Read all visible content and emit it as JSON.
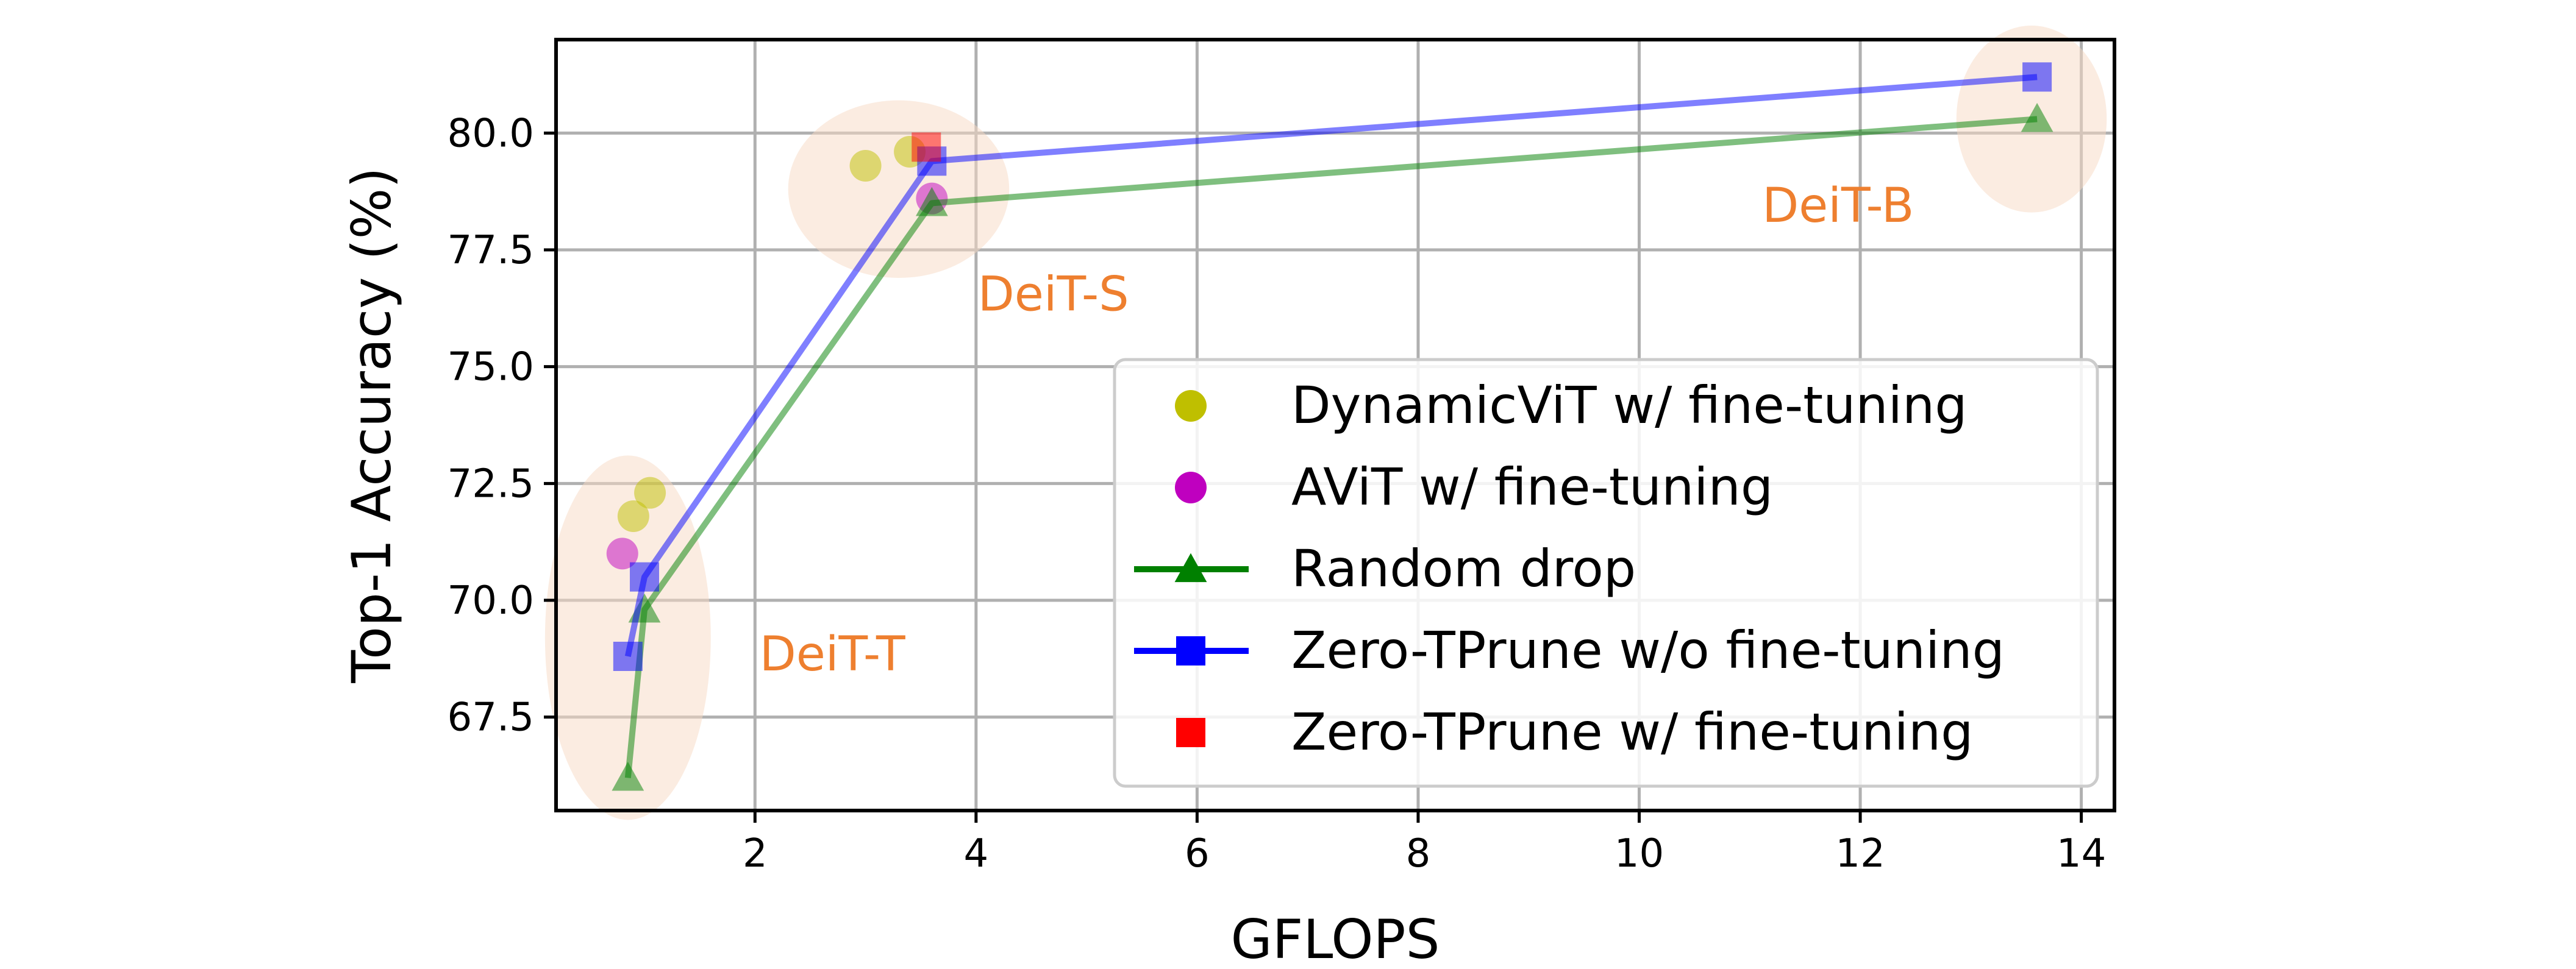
{
  "chart_data": {
    "type": "line",
    "xlabel": "GFLOPS",
    "ylabel": "Top-1 Accuracy (%)",
    "xlim": [
      0.2,
      14.3
    ],
    "ylim": [
      65.5,
      82.0
    ],
    "x_ticks": [
      2,
      4,
      6,
      8,
      10,
      12,
      14
    ],
    "y_ticks": [
      67.5,
      70.0,
      72.5,
      75.0,
      77.5,
      80.0
    ],
    "grid": true,
    "legend_position": "bottom-right",
    "series": [
      {
        "name": "DynamicViT w/ fine-tuning",
        "kind": "scatter",
        "marker": "circle",
        "color": "#bfbf00",
        "points": [
          [
            0.9,
            71.8
          ],
          [
            1.05,
            72.3
          ],
          [
            3.0,
            79.3
          ],
          [
            3.4,
            79.6
          ]
        ]
      },
      {
        "name": "AViT w/ fine-tuning",
        "kind": "scatter",
        "marker": "circle",
        "color": "#bf00bf",
        "points": [
          [
            0.8,
            71.0
          ],
          [
            3.6,
            78.6
          ]
        ]
      },
      {
        "name": "Random drop",
        "kind": "line",
        "marker": "triangle",
        "color": "#008000",
        "points": [
          [
            0.85,
            66.2
          ],
          [
            1.0,
            69.8
          ],
          [
            3.6,
            78.5
          ],
          [
            13.6,
            80.3
          ]
        ]
      },
      {
        "name": "Zero-TPrune w/o fine-tuning",
        "kind": "line",
        "marker": "square",
        "color": "#0000ff",
        "points": [
          [
            0.85,
            68.8
          ],
          [
            1.0,
            70.5
          ],
          [
            3.6,
            79.4
          ],
          [
            13.6,
            81.2
          ]
        ]
      },
      {
        "name": "Zero-TPrune w/ fine-tuning",
        "kind": "scatter",
        "marker": "square",
        "color": "#ff0000",
        "points": [
          [
            3.55,
            79.7
          ]
        ]
      }
    ],
    "groups": [
      {
        "label": "DeiT-T",
        "label_pos": [
          2.7,
          68.5
        ],
        "center": [
          0.85,
          69.2
        ],
        "rx": 0.75,
        "ry": 3.9
      },
      {
        "label": "DeiT-S",
        "label_pos": [
          4.7,
          76.2
        ],
        "center": [
          3.3,
          78.8
        ],
        "rx": 1.0,
        "ry": 1.9
      },
      {
        "label": "DeiT-B",
        "label_pos": [
          11.8,
          78.1
        ],
        "center": [
          13.55,
          80.3
        ],
        "rx": 0.68,
        "ry": 2.0
      }
    ]
  }
}
